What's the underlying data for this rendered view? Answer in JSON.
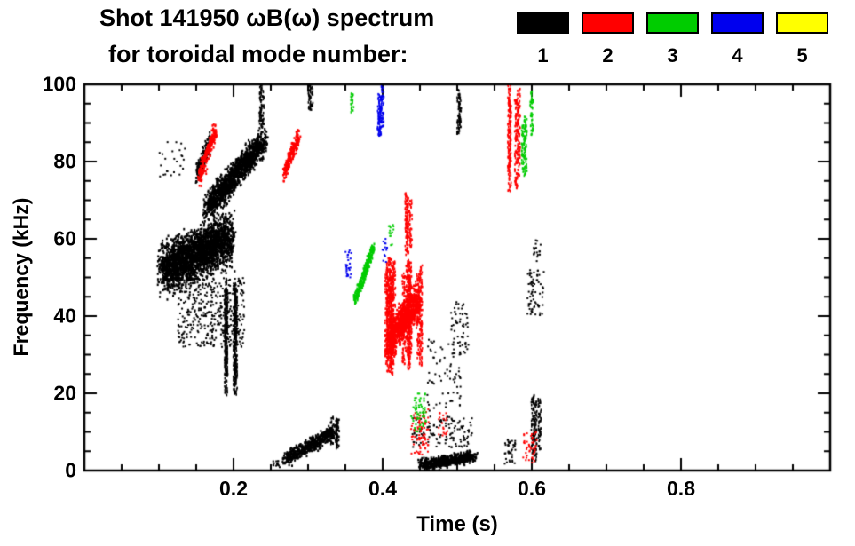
{
  "figure": {
    "background": "#ffffff"
  },
  "chart_data": {
    "type": "scatter",
    "title": "Shot 141950 ωB(ω) spectrum",
    "subtitle": "for toroidal mode number:",
    "xlabel": "Time (s)",
    "ylabel": "Frequency (kHz)",
    "xlim": [
      0,
      1
    ],
    "ylim": [
      0,
      100
    ],
    "grid": false,
    "x_ticks": {
      "major": [
        0.2,
        0.4,
        0.6,
        0.8
      ],
      "labels": [
        "0.2",
        "0.4",
        "0.6",
        "0.8"
      ],
      "minor_step": 0.05
    },
    "y_ticks": {
      "major": [
        0,
        20,
        40,
        60,
        80,
        100
      ],
      "labels": [
        "0",
        "20",
        "40",
        "60",
        "80",
        "100"
      ],
      "minor_step": 5
    },
    "legend": {
      "position": "top-right",
      "items": [
        {
          "label": "1",
          "color": "#000000"
        },
        {
          "label": "2",
          "color": "#ff0000"
        },
        {
          "label": "3",
          "color": "#00cc00"
        },
        {
          "label": "4",
          "color": "#0000ee"
        },
        {
          "label": "5",
          "color": "#ffff00"
        }
      ]
    },
    "series": [
      {
        "name": "n=1",
        "color": "#000000"
      },
      {
        "name": "n=2",
        "color": "#ff0000"
      },
      {
        "name": "n=3",
        "color": "#00cc00"
      },
      {
        "name": "n=4",
        "color": "#0000ee"
      },
      {
        "name": "n=5",
        "color": "#ffff00"
      }
    ],
    "clusters": [
      {
        "mode": 1,
        "style": "blob",
        "t": [
          0.105,
          0.195
        ],
        "f": [
          52,
          60
        ],
        "spread": 9,
        "count": 2600
      },
      {
        "mode": 1,
        "style": "blob",
        "t": [
          0.165,
          0.24
        ],
        "f": [
          68,
          85
        ],
        "spread": 5,
        "count": 1400
      },
      {
        "mode": 1,
        "style": "scatter",
        "t": [
          0.125,
          0.215
        ],
        "f": [
          32,
          50
        ],
        "count": 420
      },
      {
        "mode": 1,
        "style": "vstreaks",
        "t": [
          0.185,
          0.215
        ],
        "f": [
          18,
          50
        ],
        "streaks": 6
      },
      {
        "mode": 1,
        "style": "blob",
        "t": [
          0.15,
          0.168
        ],
        "f": [
          76,
          85
        ],
        "spread": 4,
        "count": 150
      },
      {
        "mode": 1,
        "style": "scatter",
        "t": [
          0.1,
          0.135
        ],
        "f": [
          76,
          86
        ],
        "count": 25
      },
      {
        "mode": 1,
        "style": "vstreaks",
        "t": [
          0.232,
          0.245
        ],
        "f": [
          88,
          100
        ],
        "streaks": 2
      },
      {
        "mode": 1,
        "style": "vstreaks",
        "t": [
          0.296,
          0.306
        ],
        "f": [
          92,
          100
        ],
        "streaks": 2
      },
      {
        "mode": 1,
        "style": "blob",
        "t": [
          0.27,
          0.335
        ],
        "f": [
          3,
          10
        ],
        "spread": 2.5,
        "count": 520
      },
      {
        "mode": 1,
        "style": "scatter",
        "t": [
          0.252,
          0.262
        ],
        "f": [
          0.5,
          2.5
        ],
        "count": 15
      },
      {
        "mode": 1,
        "style": "vstreaks",
        "t": [
          0.33,
          0.345
        ],
        "f": [
          5,
          16
        ],
        "streaks": 3
      },
      {
        "mode": 1,
        "style": "blob",
        "t": [
          0.452,
          0.522
        ],
        "f": [
          1.5,
          3.5
        ],
        "spread": 2,
        "count": 700
      },
      {
        "mode": 1,
        "style": "scatter",
        "t": [
          0.44,
          0.52
        ],
        "f": [
          6,
          14
        ],
        "count": 130
      },
      {
        "mode": 1,
        "style": "scatter",
        "t": [
          0.46,
          0.505
        ],
        "f": [
          15,
          34
        ],
        "count": 70
      },
      {
        "mode": 1,
        "style": "scatter",
        "t": [
          0.49,
          0.515
        ],
        "f": [
          30,
          44
        ],
        "count": 60
      },
      {
        "mode": 1,
        "style": "vstreaks",
        "t": [
          0.5,
          0.512
        ],
        "f": [
          86,
          100
        ],
        "streaks": 2
      },
      {
        "mode": 1,
        "style": "vstreaks",
        "t": [
          0.598,
          0.616
        ],
        "f": [
          2,
          20
        ],
        "streaks": 3
      },
      {
        "mode": 1,
        "style": "scatter",
        "t": [
          0.594,
          0.617
        ],
        "f": [
          40,
          52
        ],
        "count": 70
      },
      {
        "mode": 1,
        "style": "scatter",
        "t": [
          0.563,
          0.578
        ],
        "f": [
          1,
          8
        ],
        "count": 40
      },
      {
        "mode": 1,
        "style": "scatter",
        "t": [
          0.6,
          0.612
        ],
        "f": [
          54,
          60
        ],
        "count": 18
      },
      {
        "mode": 2,
        "style": "blob",
        "t": [
          0.154,
          0.176
        ],
        "f": [
          76,
          88
        ],
        "spread": 4,
        "count": 220
      },
      {
        "mode": 2,
        "style": "blob",
        "t": [
          0.268,
          0.288
        ],
        "f": [
          77,
          87
        ],
        "spread": 3.5,
        "count": 200
      },
      {
        "mode": 2,
        "style": "vstreaks",
        "t": [
          0.405,
          0.452
        ],
        "f": [
          24,
          56
        ],
        "streaks": 14
      },
      {
        "mode": 2,
        "style": "blob",
        "t": [
          0.408,
          0.448
        ],
        "f": [
          34,
          44
        ],
        "spread": 7,
        "count": 900
      },
      {
        "mode": 2,
        "style": "vstreaks",
        "t": [
          0.425,
          0.44
        ],
        "f": [
          55,
          72
        ],
        "streaks": 3
      },
      {
        "mode": 2,
        "style": "scatter",
        "t": [
          0.438,
          0.462
        ],
        "f": [
          4,
          16
        ],
        "count": 90
      },
      {
        "mode": 2,
        "style": "vstreaks",
        "t": [
          0.563,
          0.585
        ],
        "f": [
          72,
          100
        ],
        "streaks": 4
      },
      {
        "mode": 2,
        "style": "scatter",
        "t": [
          0.588,
          0.607
        ],
        "f": [
          2,
          10
        ],
        "count": 45
      },
      {
        "mode": 2,
        "style": "scatter",
        "t": [
          0.475,
          0.487
        ],
        "f": [
          9,
          15
        ],
        "count": 20
      },
      {
        "mode": 3,
        "style": "blob",
        "t": [
          0.363,
          0.388
        ],
        "f": [
          44,
          58
        ],
        "spread": 2,
        "count": 260
      },
      {
        "mode": 3,
        "style": "vstreaks",
        "t": [
          0.356,
          0.363
        ],
        "f": [
          92,
          100
        ],
        "streaks": 1
      },
      {
        "mode": 3,
        "style": "scatter",
        "t": [
          0.438,
          0.458
        ],
        "f": [
          10,
          20
        ],
        "count": 60
      },
      {
        "mode": 3,
        "style": "vstreaks",
        "t": [
          0.584,
          0.6
        ],
        "f": [
          76,
          92
        ],
        "streaks": 2
      },
      {
        "mode": 3,
        "style": "vstreaks",
        "t": [
          0.598,
          0.606
        ],
        "f": [
          84,
          100
        ],
        "streaks": 1
      },
      {
        "mode": 3,
        "style": "scatter",
        "t": [
          0.408,
          0.415
        ],
        "f": [
          58,
          64
        ],
        "count": 15
      },
      {
        "mode": 4,
        "style": "vstreaks",
        "t": [
          0.392,
          0.401
        ],
        "f": [
          86,
          100
        ],
        "streaks": 3
      },
      {
        "mode": 4,
        "style": "scatter",
        "t": [
          0.35,
          0.358
        ],
        "f": [
          50,
          57
        ],
        "count": 28
      },
      {
        "mode": 4,
        "style": "scatter",
        "t": [
          0.398,
          0.406
        ],
        "f": [
          54,
          60
        ],
        "count": 14
      }
    ]
  }
}
